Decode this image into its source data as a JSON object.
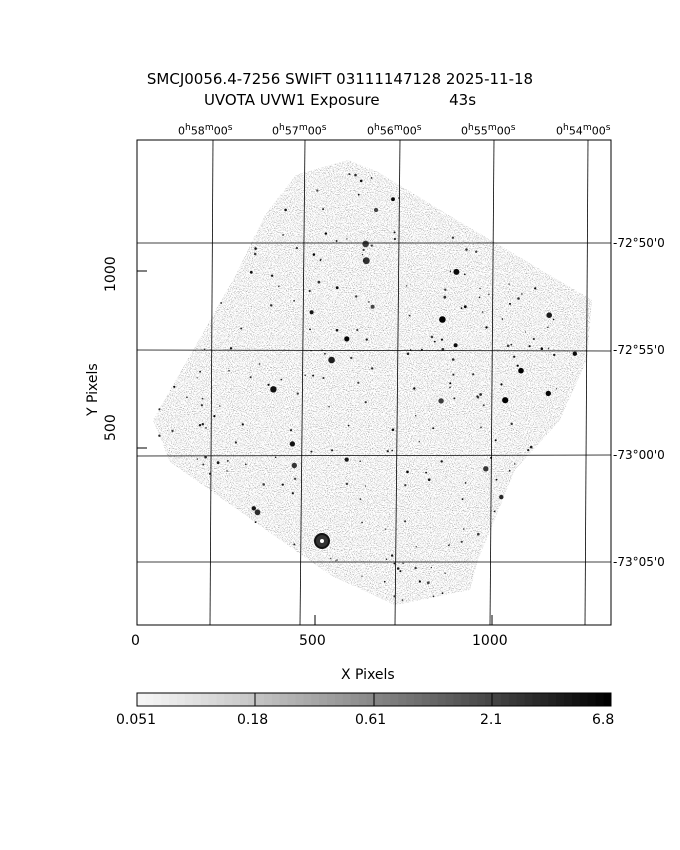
{
  "header": {
    "line1": "SMCJ0056.4-7256 SWIFT 03111147128 2025-11-18",
    "line2_left": "UVOTA UVW1 Exposure",
    "line2_right": "43s"
  },
  "axes": {
    "xlabel": "X Pixels",
    "ylabel": "Y Pixels",
    "x_ticks": [
      "0",
      "500",
      "1000"
    ],
    "y_ticks": [
      "500",
      "1000"
    ]
  },
  "ra_labels": [
    {
      "h": "0",
      "m": "58",
      "s": "00"
    },
    {
      "h": "0",
      "m": "57",
      "s": "00"
    },
    {
      "h": "0",
      "m": "56",
      "s": "00"
    },
    {
      "h": "0",
      "m": "55",
      "s": "00"
    },
    {
      "h": "0",
      "m": "54",
      "s": "00"
    }
  ],
  "dec_labels": [
    "-72°50'0",
    "-72°55'0",
    "-73°00'0",
    "-73°05'0"
  ],
  "colorbar": {
    "labels": [
      "0.051",
      "0.18",
      "0.61",
      "2.1",
      "6.8"
    ]
  },
  "colors": {
    "background": "#ffffff",
    "ink": "#000000",
    "field": "#b4b4b4"
  }
}
